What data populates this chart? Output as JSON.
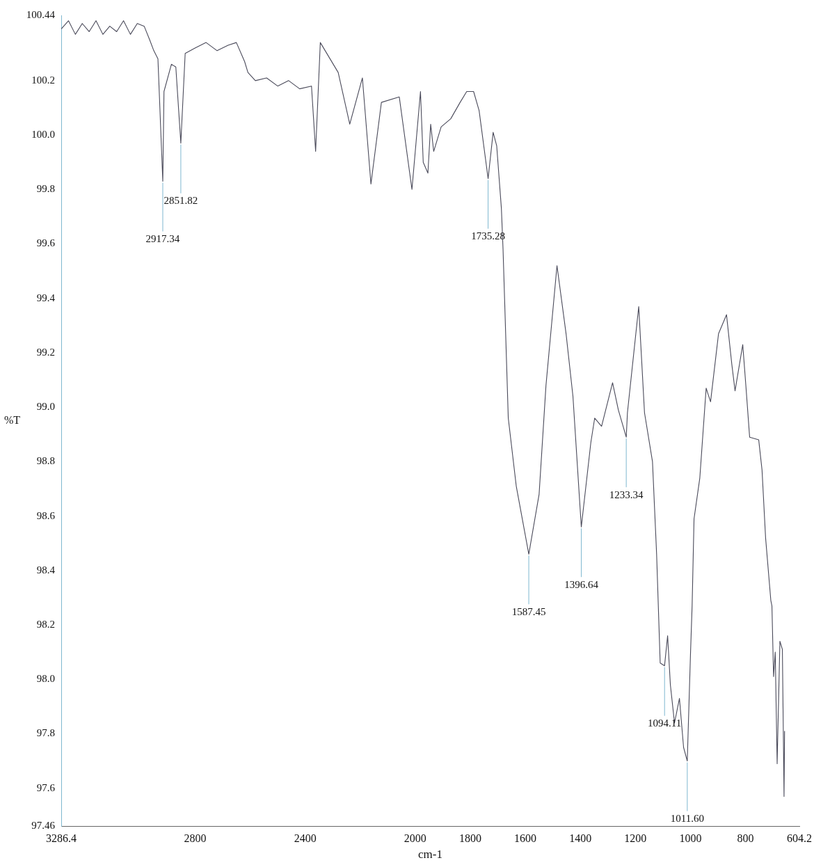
{
  "chart_data": {
    "type": "line",
    "xlabel": "cm-1",
    "ylabel": "%T",
    "x": [
      3286.4,
      3260,
      3235,
      3210,
      3185,
      3160,
      3135,
      3110,
      3085,
      3060,
      3035,
      3010,
      2985,
      2965,
      2950,
      2935,
      2917.34,
      2913,
      2886,
      2870,
      2851.82,
      2836,
      2800,
      2760,
      2720,
      2680,
      2650,
      2620,
      2608,
      2581,
      2540,
      2500,
      2460,
      2420,
      2377,
      2362,
      2345,
      2280,
      2238,
      2192,
      2161,
      2123,
      2058,
      2012,
      1981,
      1971,
      1954,
      1944,
      1933,
      1906,
      1871,
      1837,
      1813,
      1788,
      1768,
      1735.28,
      1717,
      1704,
      1687,
      1681,
      1662,
      1633,
      1587.45,
      1550,
      1525,
      1485,
      1452,
      1427,
      1396.64,
      1362,
      1348,
      1323,
      1283,
      1262,
      1233.34,
      1229,
      1188,
      1167,
      1138,
      1123,
      1110,
      1094.11,
      1083,
      1073,
      1058,
      1040,
      1025,
      1011.6,
      1000,
      994,
      987,
      966,
      943,
      927,
      898,
      869,
      850,
      838,
      810,
      798,
      785,
      752,
      740,
      727,
      708,
      704,
      698,
      692,
      685,
      675,
      666,
      660,
      658
    ],
    "series": [
      {
        "color": "#4a4a5a",
        "values": [
          100.39,
          100.42,
          100.37,
          100.41,
          100.38,
          100.42,
          100.37,
          100.4,
          100.38,
          100.42,
          100.37,
          100.41,
          100.4,
          100.35,
          100.31,
          100.28,
          99.83,
          100.16,
          100.26,
          100.25,
          99.97,
          100.3,
          100.32,
          100.34,
          100.31,
          100.33,
          100.34,
          100.27,
          100.23,
          100.2,
          100.21,
          100.18,
          100.2,
          100.17,
          100.18,
          99.94,
          100.34,
          100.23,
          100.04,
          100.21,
          99.82,
          100.12,
          100.14,
          99.8,
          100.16,
          99.9,
          99.86,
          100.04,
          99.94,
          100.03,
          100.06,
          100.12,
          100.16,
          100.16,
          100.09,
          99.84,
          100.01,
          99.96,
          99.73,
          99.58,
          98.96,
          98.71,
          98.46,
          98.68,
          99.08,
          99.52,
          99.27,
          99.04,
          98.56,
          98.87,
          98.96,
          98.93,
          99.09,
          98.99,
          98.89,
          98.98,
          99.37,
          98.98,
          98.8,
          98.46,
          98.06,
          98.05,
          98.16,
          97.98,
          97.84,
          97.93,
          97.75,
          97.7,
          98.09,
          98.27,
          98.59,
          98.74,
          99.07,
          99.02,
          99.27,
          99.34,
          99.16,
          99.06,
          99.23,
          99.07,
          98.89,
          98.88,
          98.77,
          98.52,
          98.29,
          98.27,
          98.01,
          98.1,
          97.69,
          98.14,
          98.11,
          97.57,
          97.81
        ]
      }
    ],
    "xlim": [
      3286.4,
      604.2
    ],
    "xticks": [
      3286.4,
      2800,
      2400,
      2000,
      1800,
      1600,
      1400,
      1200,
      1000,
      800,
      604.2
    ],
    "ylim": [
      97.46,
      100.44
    ],
    "yticks": [
      97.46,
      97.6,
      97.8,
      {
        "value": 98,
        "label": "98.0"
      },
      98.2,
      98.4,
      98.6,
      98.8,
      {
        "value": 99,
        "label": "99.0"
      },
      99.2,
      99.4,
      99.6,
      99.8,
      {
        "value": 100,
        "label": "100.0"
      },
      100.2,
      100.44
    ],
    "grid": false,
    "legend": false,
    "marker": "none",
    "line_style": "solid",
    "annotations": [
      {
        "text": "2917.34",
        "x": 2917.34,
        "y": 99.83
      },
      {
        "text": "2851.82",
        "x": 2851.82,
        "y": 99.97
      },
      {
        "text": "1735.28",
        "x": 1735.28,
        "y": 99.84
      },
      {
        "text": "1587.45",
        "x": 1587.45,
        "y": 98.46
      },
      {
        "text": "1396.64",
        "x": 1396.64,
        "y": 98.56
      },
      {
        "text": "1233.34",
        "x": 1233.34,
        "y": 98.89
      },
      {
        "text": "1094.11",
        "x": 1094.11,
        "y": 98.05
      },
      {
        "text": "1011.60",
        "x": 1011.6,
        "y": 97.7
      }
    ]
  }
}
